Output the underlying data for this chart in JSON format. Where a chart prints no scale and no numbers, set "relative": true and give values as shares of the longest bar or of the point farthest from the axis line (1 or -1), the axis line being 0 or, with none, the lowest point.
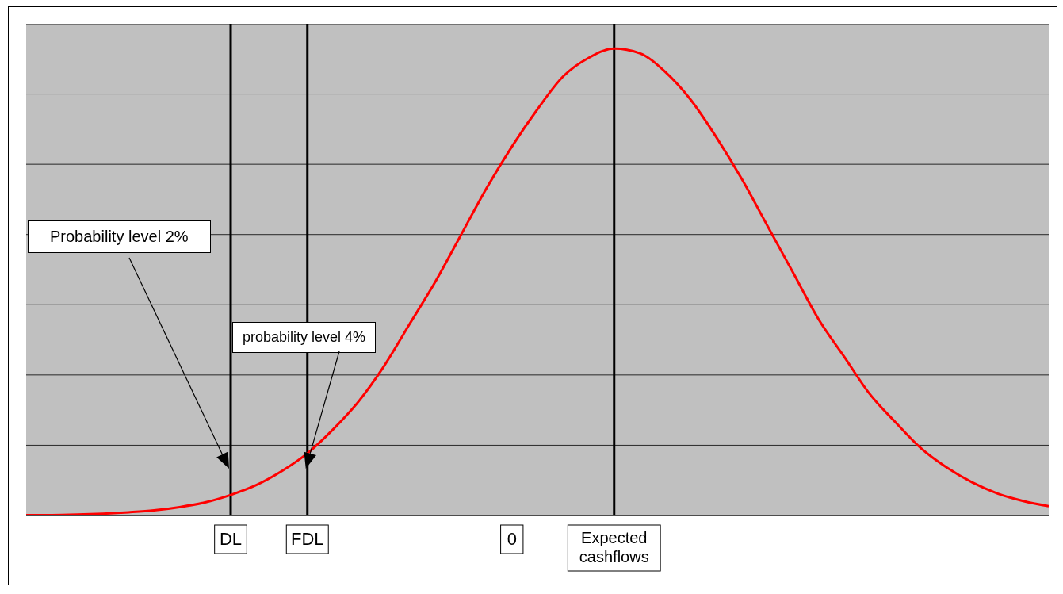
{
  "chart_data": {
    "type": "line",
    "relative": true,
    "categories": [
      null,
      null,
      null,
      null,
      null,
      null,
      null,
      null,
      "DL",
      null,
      null,
      "FDL",
      null,
      null,
      null,
      null,
      null,
      null,
      null,
      "0",
      null,
      null,
      null,
      "Expected cashflows",
      null,
      null,
      null,
      null,
      null,
      null,
      null,
      null,
      null,
      null,
      null,
      null,
      null,
      null,
      null,
      null,
      null
    ],
    "values": [
      0.001,
      0.001,
      0.002,
      0.004,
      0.007,
      0.011,
      0.018,
      0.028,
      0.044,
      0.065,
      0.095,
      0.133,
      0.184,
      0.244,
      0.32,
      0.41,
      0.5,
      0.6,
      0.7,
      0.79,
      0.87,
      0.94,
      0.98,
      1.0,
      0.99,
      0.95,
      0.89,
      0.81,
      0.72,
      0.62,
      0.52,
      0.42,
      0.34,
      0.26,
      0.2,
      0.144,
      0.103,
      0.071,
      0.047,
      0.031,
      0.02
    ],
    "color": "#ff0000",
    "grid": "y",
    "legend": false,
    "marker": "none",
    "line_style": "solid",
    "ref_lines": [
      {
        "axis": "x",
        "value": "DL",
        "color": "#000000"
      },
      {
        "axis": "x",
        "value": "FDL",
        "color": "#000000"
      },
      {
        "axis": "x",
        "value": "Expected cashflows",
        "color": "#000000"
      }
    ],
    "annotations": [
      "Probability level 2%",
      "probability level 4%"
    ]
  }
}
